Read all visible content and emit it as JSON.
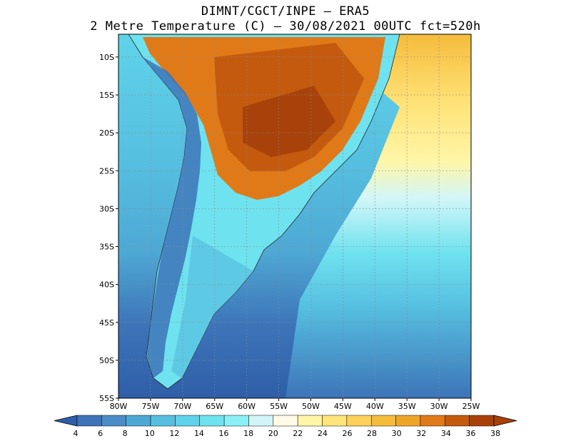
{
  "title": {
    "line1": "DIMNT/CGCT/INPE —  ERA5",
    "line2": "2 Metre Temperature (C) —  30/08/2021 00UTC fct=520h"
  },
  "map": {
    "region": "South America",
    "lon_range": [
      -80,
      -25
    ],
    "lat_range": [
      -55,
      -7
    ],
    "lat_ticks": [
      "10S",
      "15S",
      "20S",
      "25S",
      "30S",
      "35S",
      "40S",
      "45S",
      "50S",
      "55S"
    ],
    "lon_ticks": [
      "80W",
      "75W",
      "70W",
      "65W",
      "60W",
      "55W",
      "50W",
      "45W",
      "40W",
      "35W",
      "30W",
      "25W"
    ],
    "gridlines": "dotted"
  },
  "colorbar": {
    "labels": [
      "4",
      "6",
      "8",
      "10",
      "12",
      "14",
      "16",
      "18",
      "20",
      "22",
      "24",
      "26",
      "28",
      "30",
      "32",
      "34",
      "36",
      "38"
    ],
    "colors": [
      "#2e5ea8",
      "#3d74b8",
      "#4a8cc6",
      "#4ea8d4",
      "#56bfe0",
      "#5fd3ea",
      "#6fe2ef",
      "#8af0f5",
      "#d2f6f8",
      "#fffbe6",
      "#fff6a8",
      "#ffe47a",
      "#fbd15a",
      "#f5bc3c",
      "#eda52a",
      "#e07a18",
      "#c45a0e",
      "#a8420a"
    ]
  }
}
